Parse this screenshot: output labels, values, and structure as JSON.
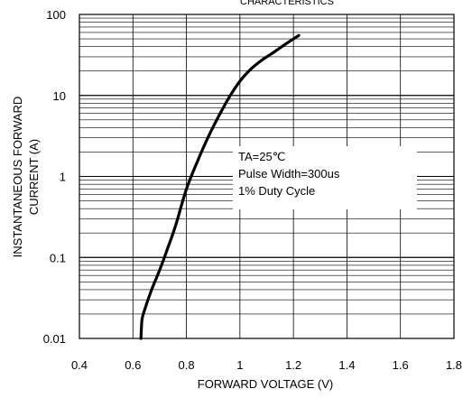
{
  "chart_data": {
    "type": "line",
    "title": "CHARACTERISTICS",
    "xlabel": "FORWARD VOLTAGE (V)",
    "ylabel_lines": [
      "INSTANTANEOUS FORWARD",
      "CURRENT (A)"
    ],
    "xlim": [
      0.4,
      1.8
    ],
    "ylim": [
      0.01,
      100
    ],
    "y_scale": "log",
    "x_ticks": [
      0.4,
      0.6,
      0.8,
      1.0,
      1.2,
      1.4,
      1.6,
      1.8
    ],
    "x_tick_labels": [
      "0.4",
      "0.6",
      "0.8",
      "1",
      "1.2",
      "1.4",
      "1.6",
      "1.8"
    ],
    "y_ticks": [
      0.01,
      0.1,
      1,
      10,
      100
    ],
    "y_tick_labels": [
      "0.01",
      "0.1",
      "1",
      "10",
      "100"
    ],
    "grid": true,
    "annotations": [
      "TA=25℃",
      "Pulse Width=300us",
      "1% Duty Cycle"
    ],
    "series": [
      {
        "color": "#000000",
        "x": [
          0.63,
          0.632,
          0.635,
          0.65,
          0.67,
          0.7,
          0.73,
          0.76,
          0.8,
          0.84,
          0.88,
          0.92,
          0.96,
          1.0,
          1.04,
          1.08,
          1.12,
          1.17,
          1.22
        ],
        "y": [
          0.01,
          0.014,
          0.018,
          0.026,
          0.04,
          0.07,
          0.13,
          0.25,
          0.7,
          1.5,
          3.0,
          5.5,
          9.5,
          15,
          21,
          27,
          33,
          43,
          55
        ]
      }
    ]
  }
}
